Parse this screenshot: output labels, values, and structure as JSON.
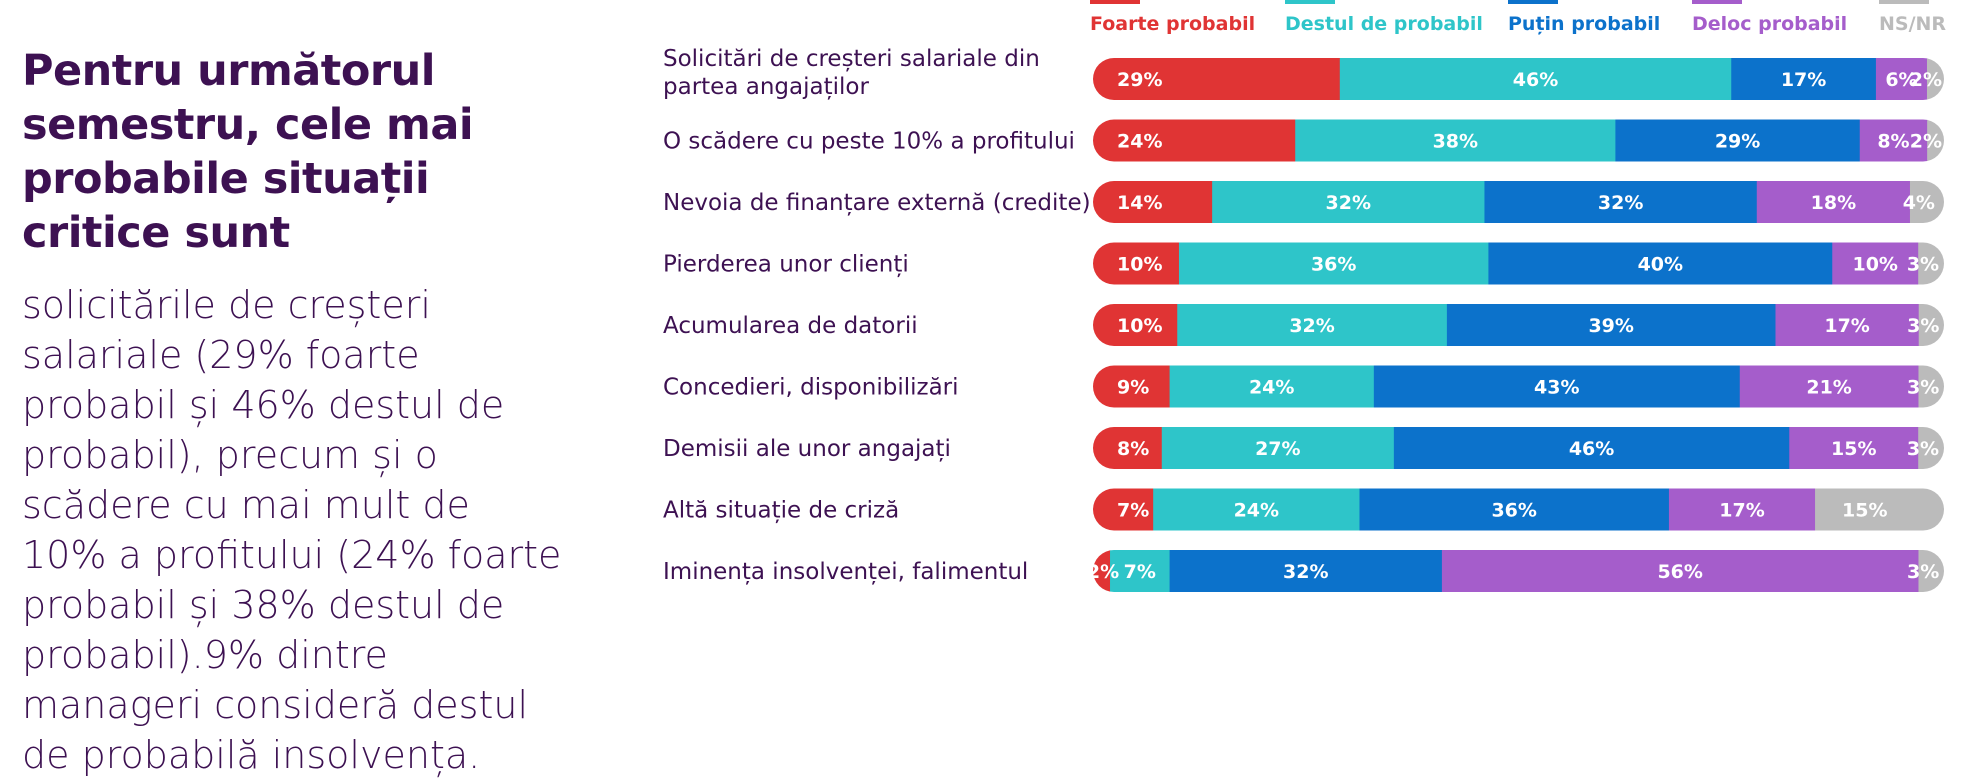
{
  "headline": "Pentru următorul semestru, cele mai probabile situații critice sunt",
  "body": "solicitările de creșteri salariale (29% foarte probabil și 46% destul de probabil), precum și o scădere cu mai mult de 10% a profitului (24% foarte probabil și 38% destul de probabil).9% dintre manageri consideră destul de probabilă insolvența.",
  "chart_data": {
    "type": "bar",
    "orientation": "horizontal",
    "stacked": true,
    "value_suffix": "%",
    "legend_position": "top",
    "categories": [
      [
        "Solicitări de creșteri salariale din",
        "partea angajaților"
      ],
      [
        "O scădere cu peste 10% a profitului"
      ],
      [
        "Nevoia de finanțare externă (credite)"
      ],
      [
        "Pierderea unor clienți"
      ],
      [
        "Acumularea de datorii"
      ],
      [
        "Concedieri, disponibilizări"
      ],
      [
        "Demisii ale unor angajați"
      ],
      [
        "Altă situație de criză"
      ],
      [
        "Iminența insolvenței, falimentul"
      ]
    ],
    "series": [
      {
        "name": "Foarte probabil",
        "color": "#e03434",
        "values": [
          29,
          24,
          14,
          10,
          10,
          9,
          8,
          7,
          2
        ]
      },
      {
        "name": "Destul de probabil",
        "color": "#2ec5c9",
        "values": [
          46,
          38,
          32,
          36,
          32,
          24,
          27,
          24,
          7
        ]
      },
      {
        "name": "Puțin probabil",
        "color": "#0c72cb",
        "values": [
          17,
          29,
          32,
          40,
          39,
          43,
          46,
          36,
          32
        ]
      },
      {
        "name": "Deloc probabil",
        "color": "#a55dcb",
        "values": [
          6,
          8,
          18,
          10,
          17,
          21,
          15,
          17,
          56
        ]
      },
      {
        "name": "NS/NR",
        "color": "#bbbbbb",
        "values": [
          2,
          2,
          4,
          3,
          3,
          3,
          3,
          15,
          3
        ]
      }
    ]
  }
}
